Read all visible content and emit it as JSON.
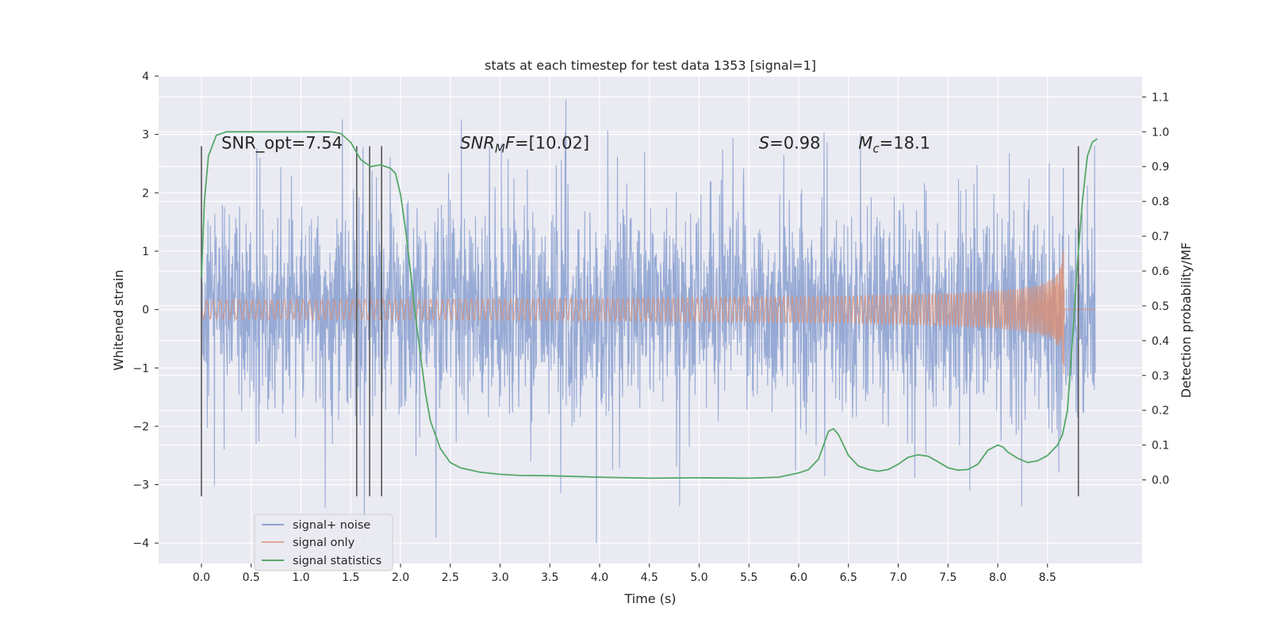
{
  "chart_data": {
    "type": "line",
    "title": "stats at each timestep for test data 1353 [signal=1]",
    "xlabel": "Time (s)",
    "ylabel": "Whitened strain",
    "y2label": "Detection probability/MF",
    "xlim": [
      -0.43,
      9.45
    ],
    "ylim": [
      -4.35,
      4.0
    ],
    "y2lim": [
      -0.24,
      1.16
    ],
    "xticks": [
      "0.0",
      "0.5",
      "1.0",
      "1.5",
      "2.0",
      "2.5",
      "3.0",
      "3.5",
      "4.0",
      "4.5",
      "5.0",
      "5.5",
      "6.0",
      "6.5",
      "7.0",
      "7.5",
      "8.0",
      "8.5"
    ],
    "yticks": [
      "4",
      "3",
      "2",
      "1",
      "0",
      "−1",
      "−2",
      "−3",
      "−4"
    ],
    "y2ticks": [
      "1.1",
      "1.0",
      "0.9",
      "0.8",
      "0.7",
      "0.6",
      "0.5",
      "0.4",
      "0.3",
      "0.2",
      "0.1",
      "0.0"
    ],
    "legend_position": "lower-left",
    "series": [
      {
        "name": "signal+ noise",
        "color": "#8ea3d2",
        "description": "whitened noisy strain, roughly within ±1.5 with spikes up to ~3.6 and down to ~-4.0",
        "t_range": [
          0.0,
          8.98
        ],
        "band": 1.5,
        "peak_max": 3.6,
        "peak_min": -4.0
      },
      {
        "name": "signal only",
        "color": "#dd8c6c",
        "description": "chirp signal growing in amplitude, merging at ~8.67 s",
        "t_range": [
          0.0,
          8.98
        ],
        "merger_time": 8.67,
        "peak_amplitude": 1.4
      },
      {
        "name": "signal statistics",
        "color": "#55a868",
        "axis": "right",
        "x": [
          0.0,
          0.03,
          0.07,
          0.15,
          0.25,
          0.5,
          0.8,
          1.0,
          1.2,
          1.3,
          1.4,
          1.5,
          1.6,
          1.7,
          1.8,
          1.9,
          1.95,
          2.0,
          2.05,
          2.1,
          2.15,
          2.2,
          2.25,
          2.3,
          2.4,
          2.5,
          2.6,
          2.8,
          3.0,
          3.2,
          3.5,
          4.0,
          4.5,
          5.0,
          5.5,
          5.8,
          6.0,
          6.1,
          6.2,
          6.3,
          6.35,
          6.4,
          6.5,
          6.6,
          6.7,
          6.8,
          6.9,
          7.0,
          7.1,
          7.2,
          7.3,
          7.4,
          7.5,
          7.6,
          7.7,
          7.8,
          7.9,
          8.0,
          8.05,
          8.1,
          8.2,
          8.3,
          8.4,
          8.5,
          8.6,
          8.65,
          8.7,
          8.75,
          8.8,
          8.85,
          8.9,
          8.95,
          9.0
        ],
        "values": [
          0.58,
          0.8,
          0.93,
          0.99,
          1.0,
          1.0,
          1.0,
          1.0,
          1.0,
          1.0,
          0.995,
          0.97,
          0.92,
          0.9,
          0.905,
          0.895,
          0.88,
          0.82,
          0.72,
          0.6,
          0.47,
          0.36,
          0.25,
          0.17,
          0.09,
          0.05,
          0.035,
          0.022,
          0.016,
          0.013,
          0.012,
          0.008,
          0.005,
          0.006,
          0.005,
          0.008,
          0.02,
          0.03,
          0.06,
          0.14,
          0.147,
          0.13,
          0.07,
          0.04,
          0.03,
          0.025,
          0.03,
          0.045,
          0.065,
          0.072,
          0.068,
          0.052,
          0.035,
          0.028,
          0.03,
          0.045,
          0.085,
          0.1,
          0.095,
          0.08,
          0.062,
          0.05,
          0.055,
          0.07,
          0.1,
          0.13,
          0.2,
          0.4,
          0.62,
          0.8,
          0.93,
          0.97,
          0.98
        ]
      }
    ],
    "vlines": [
      0.0,
      1.56,
      1.69,
      1.81,
      8.81
    ],
    "vline_color": "#555555",
    "vline_ylim": [
      -3.2,
      2.8
    ],
    "annotations": [
      {
        "name": "annot-snr-opt",
        "parts": [
          {
            "text": "SNR_opt=7.54"
          }
        ],
        "x": 0.2,
        "y": 2.85
      },
      {
        "name": "annot-snr-mf",
        "parts": [
          {
            "text": "SNR",
            "italic": true
          },
          {
            "text": "M",
            "italic": true,
            "sub": true
          },
          {
            "text": "F",
            "italic": true
          },
          {
            "text": "=[10.02]"
          }
        ],
        "x": 2.6,
        "y": 2.85
      },
      {
        "name": "annot-s",
        "parts": [
          {
            "text": "S",
            "italic": true
          },
          {
            "text": "=0.98"
          }
        ],
        "x": 5.6,
        "y": 2.85
      },
      {
        "name": "annot-mc",
        "parts": [
          {
            "text": "M",
            "italic": true
          },
          {
            "text": "c",
            "italic": true,
            "sub": true
          },
          {
            "text": "=18.1"
          }
        ],
        "x": 6.6,
        "y": 2.85
      }
    ]
  }
}
